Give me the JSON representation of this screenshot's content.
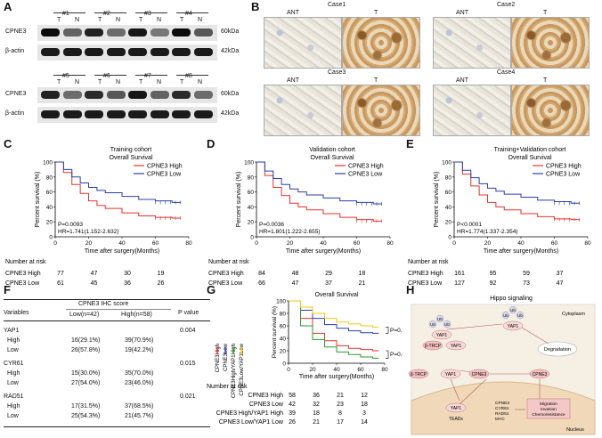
{
  "panels": {
    "A": "A",
    "B": "B",
    "C": "C",
    "D": "D",
    "E": "E",
    "F": "F",
    "G": "G",
    "H": "H"
  },
  "western": {
    "top_samples": [
      "#1",
      "#2",
      "#3",
      "#4"
    ],
    "bottom_samples": [
      "#5",
      "#6",
      "#7",
      "#8"
    ],
    "lane_t": "T",
    "lane_n": "N",
    "cpne3_label": "CPNE3",
    "actin_label": "β-actin",
    "cpne3_kda": "60kDa",
    "actin_kda": "42kDa",
    "top_cpne3_intensity": [
      0.95,
      0.55,
      0.85,
      0.5,
      0.9,
      0.45,
      0.95,
      0.6
    ],
    "bottom_cpne3_intensity": [
      0.85,
      0.5,
      0.8,
      0.6,
      0.9,
      0.55,
      0.8,
      0.5
    ]
  },
  "ihc": {
    "cases": [
      "Case1",
      "Case2",
      "Case3",
      "Case4"
    ],
    "ant_label": "ANT",
    "t_label": "T"
  },
  "km": [
    {
      "title": "Training cohort",
      "subtitle": "Overall Survival",
      "legend_high": "CPNE3 High",
      "legend_low": "CPNE3 Low",
      "pvalue": "P=0.0093",
      "hr": "HR=1.741(1.152-2.632)",
      "ylabel": "Percent survival (%)",
      "xlabel": "Time after surgery(Months)",
      "number_at_risk": "Number at risk",
      "risk_high": [
        "77",
        "47",
        "30",
        "19"
      ],
      "risk_low": [
        "61",
        "45",
        "36",
        "26"
      ]
    },
    {
      "title": "Validation cohort",
      "subtitle": "Overall Survival",
      "legend_high": "CPNE3 High",
      "legend_low": "CPNE3 Low",
      "pvalue": "P=0.0036",
      "hr": "HR=1.801(1.222-2.655)",
      "ylabel": "Percent survival (%)",
      "xlabel": "Time after surgery(Months)",
      "number_at_risk": "Number at risk",
      "risk_high": [
        "84",
        "48",
        "29",
        "18"
      ],
      "risk_low": [
        "66",
        "47",
        "37",
        "21"
      ]
    },
    {
      "title": "Training+Validation cohort",
      "subtitle": "Overall Survival",
      "legend_high": "CPNE3 High",
      "legend_low": "CPNE3 Low",
      "pvalue": "P<0.0001",
      "hr": "HR=1.774(1.337-2.354)",
      "ylabel": "Percent survival (%)",
      "xlabel": "Time after surgery(Months)",
      "number_at_risk": "Number at risk",
      "risk_high": [
        "161",
        "95",
        "59",
        "37"
      ],
      "risk_low": [
        "127",
        "92",
        "73",
        "47"
      ]
    }
  ],
  "colors": {
    "high": "#e8322b",
    "low": "#2b3fa8",
    "green": "#2e9a2e",
    "yellow": "#f2c80f"
  },
  "table": {
    "col_variables": "Variables",
    "col_header": "CPNE3 IHC score",
    "col_low": "Low(n=42)",
    "col_high": "High(n=58)",
    "col_p": "P value",
    "groups": [
      {
        "name": "YAP1",
        "p": "0.004",
        "rows": [
          {
            "label": "High",
            "low": "16(29.1%)",
            "high": "39(70.9%)"
          },
          {
            "label": "Low",
            "low": "26(57.8%)",
            "high": "19(42.2%)"
          }
        ]
      },
      {
        "name": "CYR61",
        "p": "0.015",
        "rows": [
          {
            "label": "High",
            "low": "15(30.0%)",
            "high": "35(70.0%)"
          },
          {
            "label": "Low",
            "low": "27(54.0%)",
            "high": "23(46.0%)"
          }
        ]
      },
      {
        "name": "RAD51",
        "p": "0.021",
        "rows": [
          {
            "label": "High",
            "low": "17(31.5%)",
            "high": "37(68.5%)"
          },
          {
            "label": "Low",
            "low": "25(54.3%)",
            "high": "21(45.7%)"
          }
        ]
      }
    ]
  },
  "panel_g": {
    "title": "Overall Survival",
    "ylabel": "Percent survival (%)",
    "xlabel": "Time after surgery(Months)",
    "legend": [
      "CPNE3High",
      "CPNE3Low",
      "CPNE3High/YAP1High",
      "CPNE3Low/YAP1Low"
    ],
    "p1": "P=0.3251",
    "p2": "P=0.0358",
    "number_at_risk": "Number at risk",
    "risk_rows": [
      {
        "label": "CPNE3 High",
        "values": [
          "58",
          "36",
          "21",
          "12"
        ]
      },
      {
        "label": "CPNE3 Low",
        "values": [
          "42",
          "32",
          "23",
          "18"
        ]
      },
      {
        "label": "CPNE3 High/YAP1 High",
        "values": [
          "39",
          "18",
          "8",
          "3"
        ]
      },
      {
        "label": "CPNE3 Low/YAP1 Low",
        "values": [
          "26",
          "21",
          "17",
          "14"
        ]
      }
    ]
  },
  "chart_data": [
    {
      "type": "line",
      "title": "Training cohort Overall Survival",
      "xlabel": "Time after surgery(Months)",
      "ylabel": "Percent survival (%)",
      "xlim": [
        0,
        80
      ],
      "ylim": [
        0,
        100
      ],
      "x_ticks": [
        0,
        20,
        40,
        60,
        80
      ],
      "y_ticks": [
        0,
        20,
        40,
        60,
        80,
        100
      ],
      "series": [
        {
          "name": "CPNE3 High",
          "x": [
            0,
            5,
            10,
            15,
            20,
            25,
            30,
            40,
            50,
            60,
            70,
            75
          ],
          "y": [
            100,
            86,
            70,
            58,
            48,
            42,
            38,
            32,
            28,
            26,
            25,
            25
          ]
        },
        {
          "name": "CPNE3 Low",
          "x": [
            0,
            5,
            10,
            15,
            20,
            25,
            30,
            40,
            50,
            60,
            70,
            75
          ],
          "y": [
            100,
            90,
            80,
            72,
            66,
            62,
            59,
            54,
            50,
            48,
            46,
            46
          ]
        }
      ]
    },
    {
      "type": "line",
      "title": "Validation cohort Overall Survival",
      "xlabel": "Time after surgery(Months)",
      "ylabel": "Percent survival (%)",
      "xlim": [
        0,
        80
      ],
      "ylim": [
        0,
        100
      ],
      "x_ticks": [
        0,
        20,
        40,
        60,
        80
      ],
      "y_ticks": [
        0,
        20,
        40,
        60,
        80,
        100
      ],
      "series": [
        {
          "name": "CPNE3 High",
          "x": [
            0,
            5,
            10,
            15,
            20,
            25,
            30,
            40,
            50,
            60,
            70,
            75
          ],
          "y": [
            100,
            82,
            66,
            55,
            45,
            40,
            36,
            31,
            26,
            23,
            21,
            21
          ]
        },
        {
          "name": "CPNE3 Low",
          "x": [
            0,
            5,
            10,
            15,
            20,
            25,
            30,
            40,
            50,
            60,
            70,
            75
          ],
          "y": [
            100,
            88,
            78,
            70,
            64,
            60,
            56,
            52,
            48,
            46,
            44,
            44
          ]
        }
      ]
    },
    {
      "type": "line",
      "title": "Training+Validation cohort Overall Survival",
      "xlabel": "Time after surgery(Months)",
      "ylabel": "Percent survival (%)",
      "xlim": [
        0,
        80
      ],
      "ylim": [
        0,
        100
      ],
      "x_ticks": [
        0,
        20,
        40,
        60,
        80
      ],
      "y_ticks": [
        0,
        20,
        40,
        60,
        80,
        100
      ],
      "series": [
        {
          "name": "CPNE3 High",
          "x": [
            0,
            5,
            10,
            15,
            20,
            25,
            30,
            40,
            50,
            60,
            70,
            75
          ],
          "y": [
            100,
            84,
            68,
            56,
            46,
            40,
            36,
            31,
            27,
            24,
            23,
            23
          ]
        },
        {
          "name": "CPNE3 Low",
          "x": [
            0,
            5,
            10,
            15,
            20,
            25,
            30,
            40,
            50,
            60,
            70,
            75
          ],
          "y": [
            100,
            89,
            79,
            71,
            65,
            61,
            57,
            53,
            49,
            47,
            45,
            45
          ]
        }
      ]
    },
    {
      "type": "line",
      "title": "Overall Survival",
      "xlabel": "Time after surgery(Months)",
      "ylabel": "Percent survival (%)",
      "xlim": [
        0,
        80
      ],
      "ylim": [
        0,
        100
      ],
      "x_ticks": [
        0,
        20,
        40,
        60,
        80
      ],
      "y_ticks": [
        0,
        20,
        40,
        60,
        80,
        100
      ],
      "series": [
        {
          "name": "CPNE3 High",
          "x": [
            0,
            10,
            20,
            30,
            40,
            50,
            60,
            70,
            75
          ],
          "y": [
            100,
            72,
            48,
            36,
            28,
            24,
            22,
            20,
            20
          ]
        },
        {
          "name": "CPNE3 Low",
          "x": [
            0,
            10,
            20,
            30,
            40,
            50,
            60,
            70,
            75
          ],
          "y": [
            100,
            85,
            72,
            62,
            56,
            52,
            49,
            48,
            48
          ]
        },
        {
          "name": "CPNE3 High/YAP1 High",
          "x": [
            0,
            10,
            20,
            30,
            40,
            50,
            60,
            70,
            75
          ],
          "y": [
            100,
            60,
            38,
            26,
            18,
            14,
            10,
            8,
            8
          ]
        },
        {
          "name": "CPNE3 Low/YAP1 Low",
          "x": [
            0,
            10,
            20,
            30,
            40,
            50,
            60,
            70,
            75
          ],
          "y": [
            100,
            90,
            80,
            72,
            66,
            63,
            60,
            58,
            58
          ]
        }
      ]
    }
  ],
  "pathway": {
    "title": "Hippo signaling",
    "cytoplasm": "Cytoplasm",
    "nucleus": "Nucleus",
    "ub": "Ub",
    "yap1": "YAP1",
    "btrcp": "β-TRCP",
    "cpne3": "CPNE3",
    "degradation": "Degradation",
    "teads": "TEADs",
    "targets": [
      "CPNE3",
      "CYR61",
      "RAD51",
      "MYC"
    ],
    "outcome": [
      "Migration",
      "Invasion",
      "Chemoresistance"
    ]
  }
}
